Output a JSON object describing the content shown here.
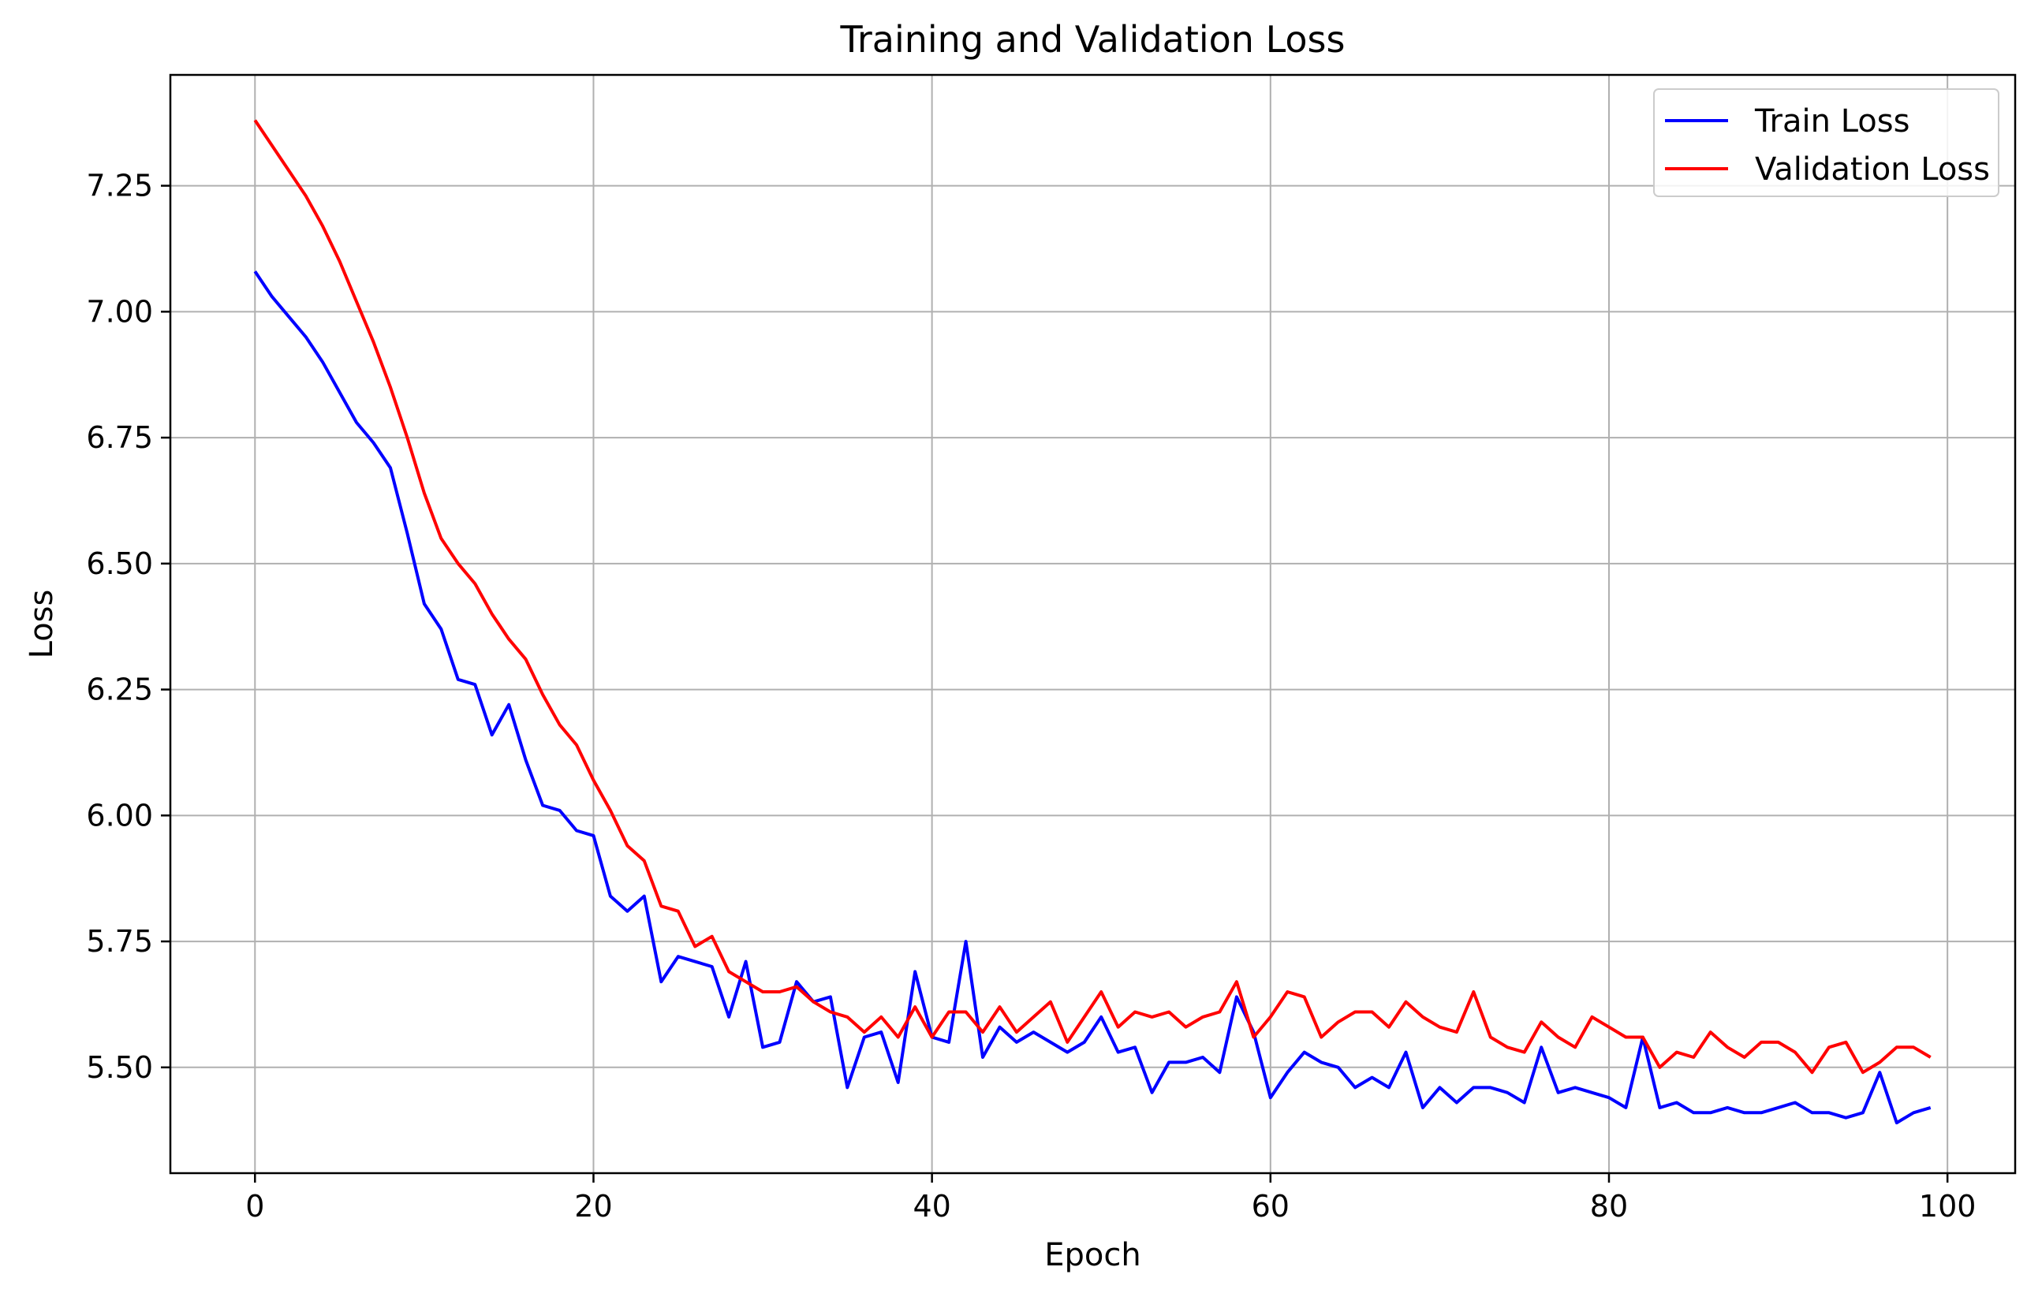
{
  "chart_data": {
    "type": "line",
    "title": "Training and Validation Loss",
    "xlabel": "Epoch",
    "ylabel": "Loss",
    "xlim": [
      -5,
      104
    ],
    "ylim": [
      5.29,
      7.47
    ],
    "x_ticks": [
      0,
      20,
      40,
      60,
      80,
      100
    ],
    "x_tick_labels": [
      "0",
      "20",
      "40",
      "60",
      "80",
      "100"
    ],
    "y_ticks": [
      5.5,
      5.75,
      6.0,
      6.25,
      6.5,
      6.75,
      7.0,
      7.25
    ],
    "y_tick_labels": [
      "5.50",
      "5.75",
      "6.00",
      "6.25",
      "6.50",
      "6.75",
      "7.00",
      "7.25"
    ],
    "grid": true,
    "legend_position": "top-right",
    "x": [
      0,
      1,
      2,
      3,
      4,
      5,
      6,
      7,
      8,
      9,
      10,
      11,
      12,
      13,
      14,
      15,
      16,
      17,
      18,
      19,
      20,
      21,
      22,
      23,
      24,
      25,
      26,
      27,
      28,
      29,
      30,
      31,
      32,
      33,
      34,
      35,
      36,
      37,
      38,
      39,
      40,
      41,
      42,
      43,
      44,
      45,
      46,
      47,
      48,
      49,
      50,
      51,
      52,
      53,
      54,
      55,
      56,
      57,
      58,
      59,
      60,
      61,
      62,
      63,
      64,
      65,
      66,
      67,
      68,
      69,
      70,
      71,
      72,
      73,
      74,
      75,
      76,
      77,
      78,
      79,
      80,
      81,
      82,
      83,
      84,
      85,
      86,
      87,
      88,
      89,
      90,
      91,
      92,
      93,
      94,
      95,
      96,
      97,
      98,
      99
    ],
    "series": [
      {
        "name": "Train Loss",
        "color": "#0000ff",
        "values": [
          7.08,
          7.03,
          6.99,
          6.95,
          6.9,
          6.84,
          6.78,
          6.74,
          6.69,
          6.56,
          6.42,
          6.37,
          6.27,
          6.26,
          6.16,
          6.22,
          6.11,
          6.02,
          6.01,
          5.97,
          5.96,
          5.84,
          5.81,
          5.84,
          5.67,
          5.72,
          5.71,
          5.7,
          5.6,
          5.71,
          5.54,
          5.55,
          5.67,
          5.63,
          5.64,
          5.46,
          5.56,
          5.57,
          5.47,
          5.69,
          5.56,
          5.55,
          5.75,
          5.52,
          5.58,
          5.55,
          5.57,
          5.55,
          5.53,
          5.55,
          5.6,
          5.53,
          5.54,
          5.45,
          5.51,
          5.51,
          5.52,
          5.49,
          5.64,
          5.57,
          5.44,
          5.49,
          5.53,
          5.51,
          5.5,
          5.46,
          5.48,
          5.46,
          5.53,
          5.42,
          5.46,
          5.43,
          5.46,
          5.46,
          5.45,
          5.43,
          5.54,
          5.45,
          5.46,
          5.45,
          5.44,
          5.42,
          5.56,
          5.42,
          5.43,
          5.41,
          5.41,
          5.42,
          5.41,
          5.41,
          5.42,
          5.43,
          5.41,
          5.41,
          5.4,
          5.41,
          5.49,
          5.39,
          5.41,
          5.42
        ]
      },
      {
        "name": "Validation Loss",
        "color": "#ff0000",
        "values": [
          7.38,
          7.33,
          7.28,
          7.23,
          7.17,
          7.1,
          7.02,
          6.94,
          6.85,
          6.75,
          6.64,
          6.55,
          6.5,
          6.46,
          6.4,
          6.35,
          6.31,
          6.24,
          6.18,
          6.14,
          6.07,
          6.01,
          5.94,
          5.91,
          5.82,
          5.81,
          5.74,
          5.76,
          5.69,
          5.67,
          5.65,
          5.65,
          5.66,
          5.63,
          5.61,
          5.6,
          5.57,
          5.6,
          5.56,
          5.62,
          5.56,
          5.61,
          5.61,
          5.57,
          5.62,
          5.57,
          5.6,
          5.63,
          5.55,
          5.6,
          5.65,
          5.58,
          5.61,
          5.6,
          5.61,
          5.58,
          5.6,
          5.61,
          5.67,
          5.56,
          5.6,
          5.65,
          5.64,
          5.56,
          5.59,
          5.61,
          5.61,
          5.58,
          5.63,
          5.6,
          5.58,
          5.57,
          5.65,
          5.56,
          5.54,
          5.53,
          5.59,
          5.56,
          5.54,
          5.6,
          5.58,
          5.56,
          5.56,
          5.5,
          5.53,
          5.52,
          5.57,
          5.54,
          5.52,
          5.55,
          5.55,
          5.53,
          5.49,
          5.54,
          5.55,
          5.49,
          5.51,
          5.54,
          5.54,
          5.52
        ]
      }
    ]
  }
}
